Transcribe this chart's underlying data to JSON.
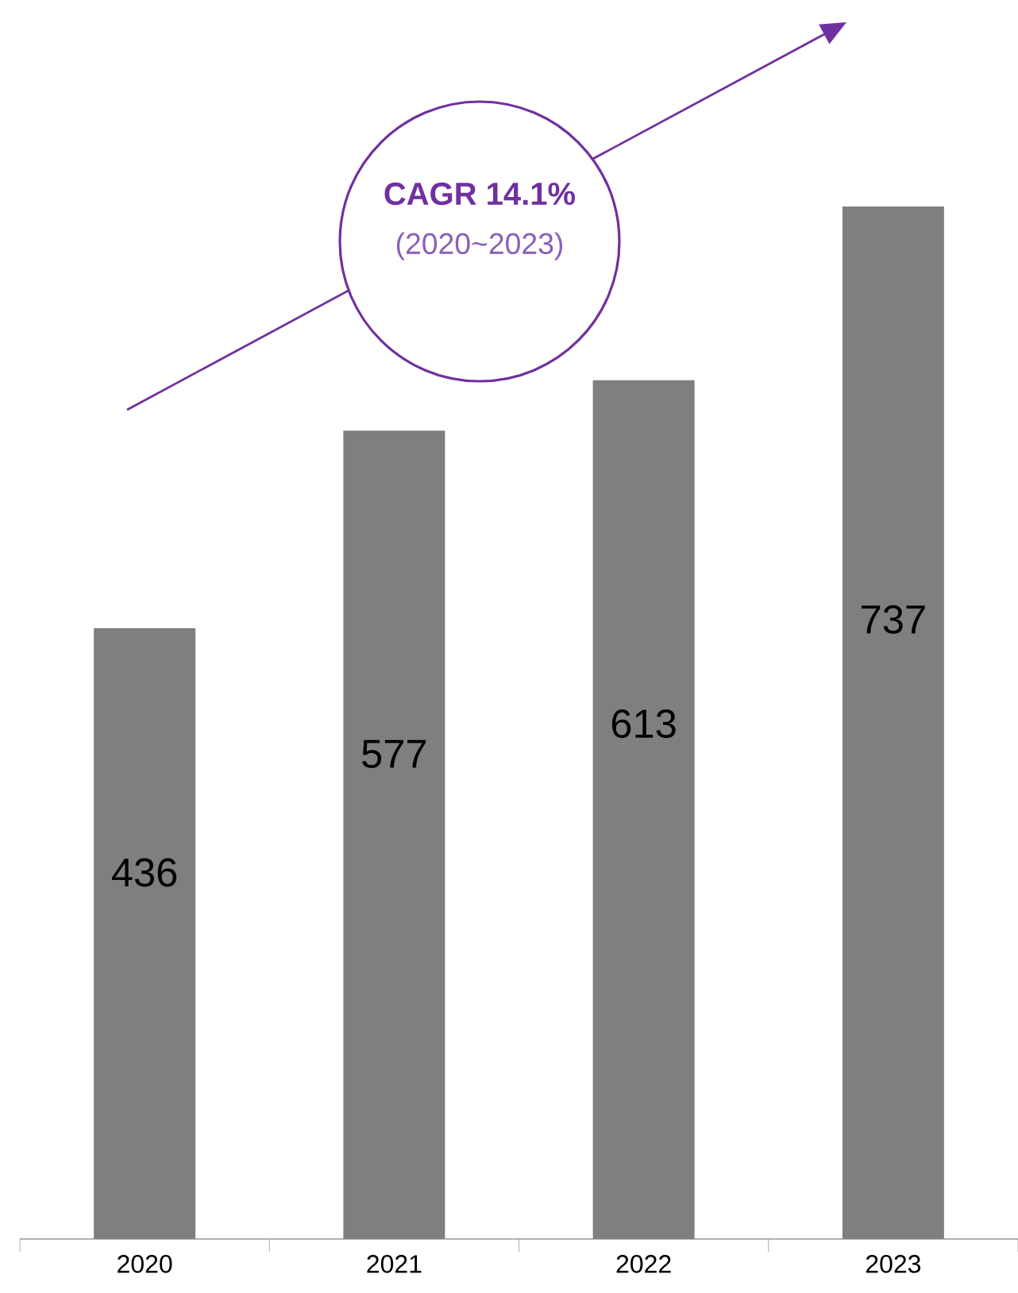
{
  "chart_data": {
    "type": "bar",
    "categories": [
      "2020",
      "2021",
      "2022",
      "2023"
    ],
    "values": [
      436,
      577,
      613,
      737
    ],
    "color": "#7f7f7f",
    "data_labels": true,
    "annotations": [
      "CAGR 14.1%",
      "(2020~2023)"
    ]
  }
}
